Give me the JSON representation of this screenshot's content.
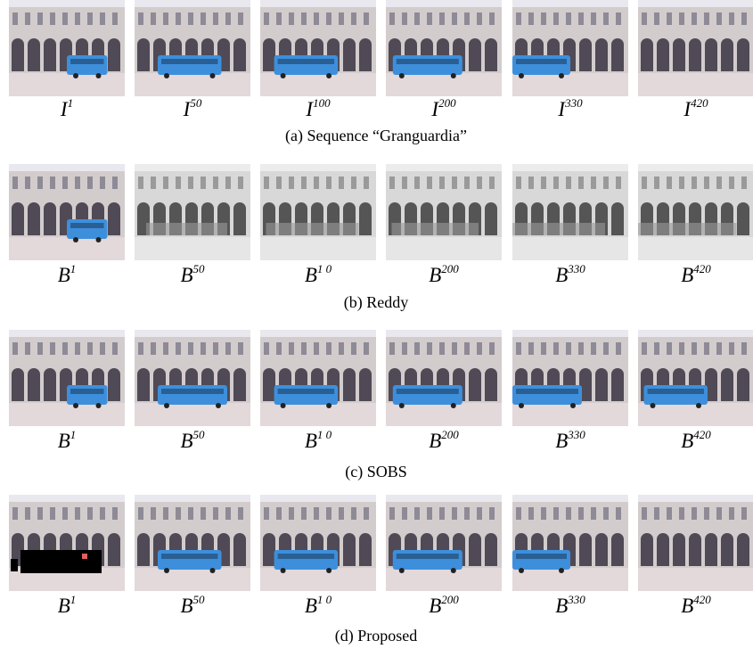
{
  "rows": [
    {
      "frames": [
        {
          "base": "I",
          "sup": "1"
        },
        {
          "base": "I",
          "sup": "50"
        },
        {
          "base": "I",
          "sup": "100"
        },
        {
          "base": "I",
          "sup": "200"
        },
        {
          "base": "I",
          "sup": "330"
        },
        {
          "base": "I",
          "sup": "420"
        }
      ],
      "caption": "(a) Sequence “Granguardia”"
    },
    {
      "frames": [
        {
          "base": "B",
          "sup": "1"
        },
        {
          "base": "B",
          "sup": "50"
        },
        {
          "base": "B",
          "sup": "1 0"
        },
        {
          "base": "B",
          "sup": "200"
        },
        {
          "base": "B",
          "sup": "330"
        },
        {
          "base": "B",
          "sup": "420"
        }
      ],
      "caption": "(b) Reddy"
    },
    {
      "frames": [
        {
          "base": "B",
          "sup": "1"
        },
        {
          "base": "B",
          "sup": "50"
        },
        {
          "base": "B",
          "sup": "1 0"
        },
        {
          "base": "B",
          "sup": "200"
        },
        {
          "base": "B",
          "sup": "330"
        },
        {
          "base": "B",
          "sup": "420"
        }
      ],
      "caption": "(c) SOBS"
    },
    {
      "frames": [
        {
          "base": "B",
          "sup": "1"
        },
        {
          "base": "B",
          "sup": "50"
        },
        {
          "base": "B",
          "sup": "1 0"
        },
        {
          "base": "B",
          "sup": "200"
        },
        {
          "base": "B",
          "sup": "330"
        },
        {
          "base": "B",
          "sup": "420"
        }
      ],
      "caption": "(d) Proposed"
    }
  ]
}
